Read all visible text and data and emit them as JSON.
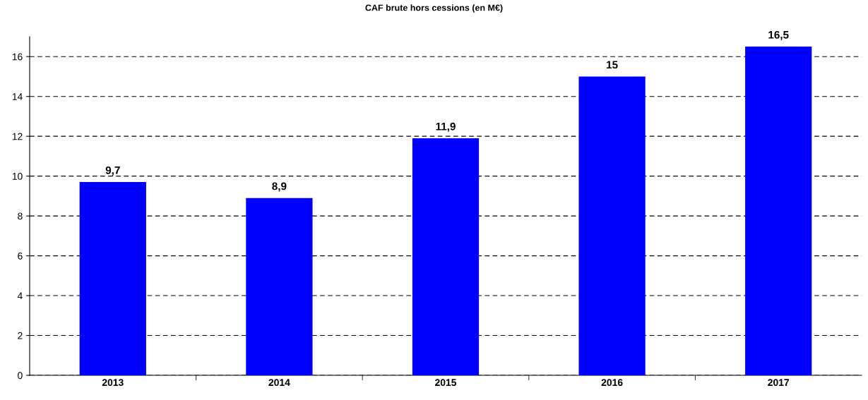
{
  "chart_data": {
    "type": "bar",
    "title": "CAF brute hors cessions (en M€)",
    "categories": [
      "2013",
      "2014",
      "2015",
      "2016",
      "2017"
    ],
    "values": [
      9.7,
      8.9,
      11.9,
      15,
      16.5
    ],
    "value_labels": [
      "9,7",
      "8,9",
      "11,9",
      "15",
      "16,5"
    ],
    "color": "#0000ff",
    "ylim": [
      0,
      17
    ],
    "yticks": [
      0,
      2,
      4,
      6,
      8,
      10,
      12,
      14,
      16
    ],
    "grid": "y",
    "legend": false
  }
}
